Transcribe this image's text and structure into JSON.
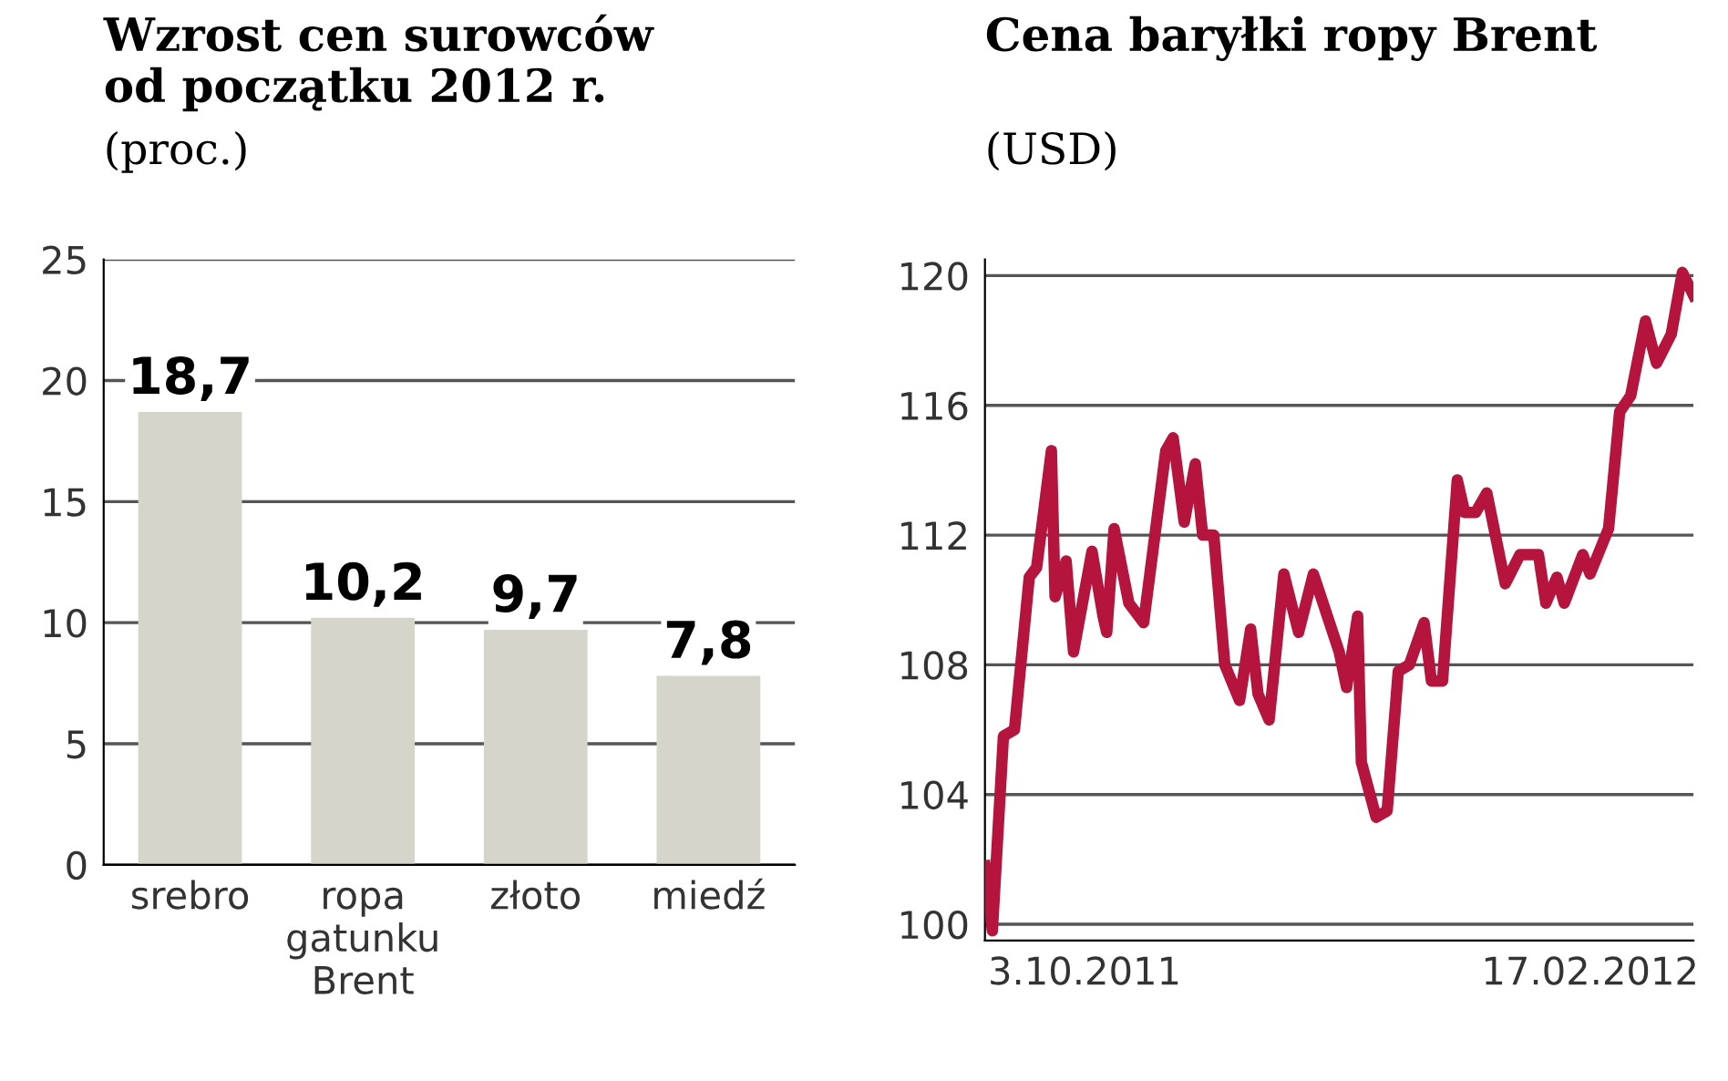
{
  "chart_data": [
    {
      "type": "bar",
      "title": "Wzrost cen surowców\nod początku 2012 r.",
      "subtitle": "(proc.)",
      "categories": [
        "srebro",
        "ropa\ngatunku\nBrent",
        "złoto",
        "miedź"
      ],
      "values": [
        18.7,
        10.2,
        9.7,
        7.8
      ],
      "value_labels": [
        "18,7",
        "10,2",
        "9,7",
        "7,8"
      ],
      "color": "#d5d5cb",
      "ylim": [
        0,
        25
      ],
      "yticks": [
        0,
        5,
        10,
        15,
        20,
        25
      ],
      "grid": "y",
      "legend": false
    },
    {
      "type": "line",
      "title": "Cena baryłki ropy Brent",
      "subtitle": "(USD)",
      "color": "#b5143c",
      "grid": "y",
      "legend": false,
      "marker": "none",
      "line_style": "solid",
      "x": [
        "2011-09-06",
        "2011-09-08",
        "2011-09-11",
        "2011-09-14",
        "2011-09-18",
        "2011-09-20",
        "2011-09-24",
        "2011-09-25",
        "2011-09-28",
        "2011-09-30",
        "2011-10-05",
        "2011-10-08",
        "2011-10-09",
        "2011-10-11",
        "2011-10-15",
        "2011-10-19",
        "2011-10-25",
        "2011-10-27",
        "2011-10-30",
        "2011-11-02",
        "2011-11-04",
        "2011-11-07",
        "2011-11-10",
        "2011-11-14",
        "2011-11-17",
        "2011-11-19",
        "2011-11-22",
        "2011-11-26",
        "2011-11-30",
        "2011-12-04",
        "2011-12-11",
        "2011-12-13",
        "2011-12-16",
        "2011-12-17",
        "2011-12-21",
        "2011-12-24",
        "2011-12-27",
        "2011-12-30",
        "2012-01-03",
        "2012-01-05",
        "2012-01-08",
        "2012-01-12",
        "2012-01-14",
        "2012-01-17",
        "2012-01-20",
        "2012-01-25",
        "2012-01-29",
        "2012-02-03",
        "2012-02-05",
        "2012-02-08",
        "2012-02-10",
        "2012-02-15",
        "2012-02-17",
        "2012-02-22",
        "2012-02-25",
        "2012-02-28",
        "2012-03-03",
        "2012-03-06",
        "2012-03-10",
        "2012-03-13",
        "2012-03-16"
      ],
      "values": [
        101.8,
        99.8,
        105.8,
        106,
        110.7,
        111,
        114.6,
        110.1,
        111.2,
        108.4,
        111.5,
        109.5,
        109,
        112.2,
        109.9,
        109.3,
        114.6,
        115,
        112.4,
        114.2,
        112,
        112,
        108,
        106.9,
        109.1,
        107.1,
        106.3,
        110.8,
        109,
        110.8,
        108.4,
        107.3,
        109.5,
        105,
        103.3,
        103.5,
        107.8,
        108,
        109.3,
        107.5,
        107.5,
        113.7,
        112.7,
        112.7,
        113.3,
        110.5,
        111.4,
        111.4,
        109.9,
        110.7,
        109.9,
        111.4,
        110.8,
        112.2,
        115.8,
        116.3,
        118.6,
        117.3,
        118.2,
        120.1,
        119.4
      ],
      "xlim": [
        "2011-09-06",
        "2012-03-16"
      ],
      "xticks": [
        {
          "value": "2011-10-03",
          "label": "3.10.2011"
        },
        {
          "value": "2012-02-17",
          "label": "17.02.2012"
        }
      ],
      "ylim": [
        99.5,
        120.5
      ],
      "yticks": [
        100,
        104,
        108,
        112,
        116,
        120
      ]
    }
  ]
}
